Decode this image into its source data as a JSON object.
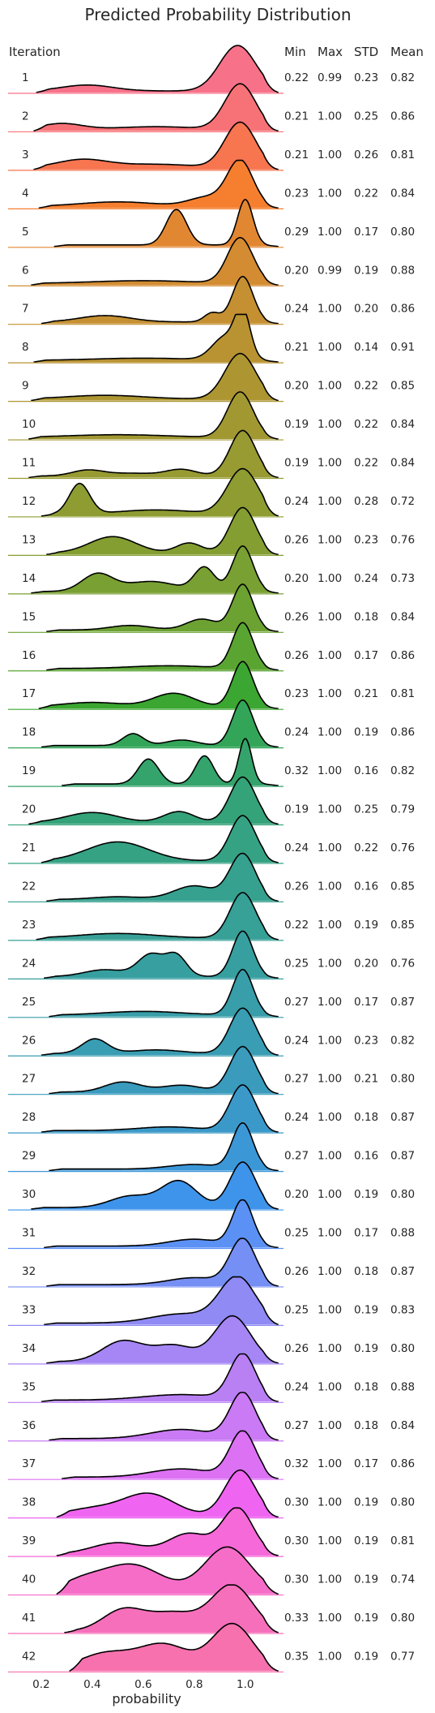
{
  "chart_data": {
    "type": "ridgeline",
    "title": "Predicted Probability Distribution",
    "xlabel": "probability",
    "x_ticks": [
      "0.2",
      "0.4",
      "0.6",
      "0.8",
      "1.0"
    ],
    "x_tick_values": [
      0.2,
      0.4,
      0.6,
      0.8,
      1.0
    ],
    "xlim": [
      0.07,
      1.15
    ],
    "grid": false,
    "row_header": "Iteration",
    "stat_columns": [
      "Min",
      "Max",
      "STD",
      "Mean"
    ],
    "series": [
      {
        "label": "1",
        "color": "#f77189",
        "stats": [
          "0.22",
          "0.99",
          "0.23",
          "0.82"
        ],
        "peaks": [
          [
            0.97,
            0.07,
            1.0
          ],
          [
            0.38,
            0.1,
            0.13
          ]
        ]
      },
      {
        "label": "2",
        "color": "#f77277",
        "stats": [
          "0.21",
          "1.00",
          "0.25",
          "0.86"
        ],
        "peaks": [
          [
            0.98,
            0.06,
            1.0
          ],
          [
            0.28,
            0.08,
            0.13
          ],
          [
            0.65,
            0.15,
            0.06
          ]
        ]
      },
      {
        "label": "3",
        "color": "#f7754f",
        "stats": [
          "0.21",
          "1.00",
          "0.26",
          "0.81"
        ],
        "peaks": [
          [
            0.98,
            0.06,
            1.0
          ],
          [
            0.36,
            0.1,
            0.18
          ],
          [
            0.65,
            0.15,
            0.08
          ]
        ]
      },
      {
        "label": "4",
        "color": "#f57f2f",
        "stats": [
          "0.23",
          "1.00",
          "0.22",
          "0.84"
        ],
        "peaks": [
          [
            0.98,
            0.05,
            1.0
          ],
          [
            0.85,
            0.07,
            0.2
          ],
          [
            0.5,
            0.15,
            0.1
          ]
        ]
      },
      {
        "label": "5",
        "color": "#e28731",
        "stats": [
          "0.29",
          "1.00",
          "0.17",
          "0.80"
        ],
        "peaks": [
          [
            1.0,
            0.03,
            1.0
          ],
          [
            0.73,
            0.04,
            0.78
          ]
        ]
      },
      {
        "label": "6",
        "color": "#d38c32",
        "stats": [
          "0.20",
          "0.99",
          "0.19",
          "0.88"
        ],
        "peaks": [
          [
            0.98,
            0.05,
            1.0
          ],
          [
            0.6,
            0.2,
            0.06
          ]
        ]
      },
      {
        "label": "7",
        "color": "#c59032",
        "stats": [
          "0.24",
          "1.00",
          "0.20",
          "0.86"
        ],
        "peaks": [
          [
            0.99,
            0.04,
            1.0
          ],
          [
            0.87,
            0.03,
            0.2
          ],
          [
            0.45,
            0.1,
            0.14
          ]
        ]
      },
      {
        "label": "8",
        "color": "#b99332",
        "stats": [
          "0.21",
          "1.00",
          "0.14",
          "0.91"
        ],
        "peaks": [
          [
            0.99,
            0.03,
            1.0
          ],
          [
            0.92,
            0.05,
            0.5
          ],
          [
            0.6,
            0.2,
            0.05
          ]
        ]
      },
      {
        "label": "9",
        "color": "#ad9632",
        "stats": [
          "0.20",
          "1.00",
          "0.22",
          "0.85"
        ],
        "peaks": [
          [
            0.98,
            0.06,
            1.0
          ],
          [
            0.45,
            0.15,
            0.08
          ]
        ]
      },
      {
        "label": "10",
        "color": "#a29832",
        "stats": [
          "0.19",
          "1.00",
          "0.22",
          "0.84"
        ],
        "peaks": [
          [
            0.98,
            0.05,
            1.0
          ],
          [
            0.5,
            0.2,
            0.06
          ]
        ]
      },
      {
        "label": "11",
        "color": "#989a32",
        "stats": [
          "0.19",
          "1.00",
          "0.22",
          "0.84"
        ],
        "peaks": [
          [
            0.99,
            0.05,
            1.0
          ],
          [
            0.38,
            0.06,
            0.12
          ],
          [
            0.75,
            0.06,
            0.14
          ],
          [
            0.55,
            0.1,
            0.06
          ]
        ]
      },
      {
        "label": "12",
        "color": "#8e9c32",
        "stats": [
          "0.24",
          "1.00",
          "0.28",
          "0.72"
        ],
        "peaks": [
          [
            0.99,
            0.06,
            1.0
          ],
          [
            0.35,
            0.04,
            0.67
          ],
          [
            0.65,
            0.15,
            0.1
          ]
        ]
      },
      {
        "label": "13",
        "color": "#849e32",
        "stats": [
          "0.26",
          "1.00",
          "0.23",
          "0.76"
        ],
        "peaks": [
          [
            0.99,
            0.05,
            1.0
          ],
          [
            0.48,
            0.09,
            0.36
          ],
          [
            0.78,
            0.05,
            0.22
          ]
        ]
      },
      {
        "label": "14",
        "color": "#79a032",
        "stats": [
          "0.20",
          "1.00",
          "0.24",
          "0.73"
        ],
        "peaks": [
          [
            0.99,
            0.04,
            1.0
          ],
          [
            0.42,
            0.06,
            0.38
          ],
          [
            0.84,
            0.04,
            0.52
          ],
          [
            0.63,
            0.1,
            0.22
          ]
        ]
      },
      {
        "label": "15",
        "color": "#6ca232",
        "stats": [
          "0.26",
          "1.00",
          "0.18",
          "0.84"
        ],
        "peaks": [
          [
            0.99,
            0.04,
            1.0
          ],
          [
            0.83,
            0.06,
            0.24
          ],
          [
            0.55,
            0.08,
            0.1
          ]
        ]
      },
      {
        "label": "16",
        "color": "#5aa532",
        "stats": [
          "0.26",
          "1.00",
          "0.17",
          "0.86"
        ],
        "peaks": [
          [
            0.99,
            0.04,
            1.0
          ],
          [
            0.7,
            0.15,
            0.06
          ]
        ]
      },
      {
        "label": "17",
        "color": "#3ba631",
        "stats": [
          "0.23",
          "1.00",
          "0.21",
          "0.81"
        ],
        "peaks": [
          [
            0.99,
            0.04,
            1.0
          ],
          [
            0.72,
            0.08,
            0.3
          ],
          [
            0.4,
            0.12,
            0.1
          ]
        ]
      },
      {
        "label": "18",
        "color": "#33a559",
        "stats": [
          "0.24",
          "1.00",
          "0.19",
          "0.86"
        ],
        "peaks": [
          [
            0.99,
            0.04,
            1.0
          ],
          [
            0.56,
            0.04,
            0.26
          ],
          [
            0.75,
            0.06,
            0.12
          ]
        ]
      },
      {
        "label": "19",
        "color": "#34a46c",
        "stats": [
          "0.32",
          "1.00",
          "0.16",
          "0.82"
        ],
        "peaks": [
          [
            1.0,
            0.025,
            1.0
          ],
          [
            0.62,
            0.04,
            0.55
          ],
          [
            0.84,
            0.035,
            0.62
          ]
        ]
      },
      {
        "label": "20",
        "color": "#35a379",
        "stats": [
          "0.19",
          "1.00",
          "0.25",
          "0.79"
        ],
        "peaks": [
          [
            0.99,
            0.05,
            1.0
          ],
          [
            0.4,
            0.1,
            0.22
          ],
          [
            0.74,
            0.06,
            0.24
          ]
        ]
      },
      {
        "label": "21",
        "color": "#36a284",
        "stats": [
          "0.24",
          "1.00",
          "0.22",
          "0.76"
        ],
        "peaks": [
          [
            0.99,
            0.05,
            1.0
          ],
          [
            0.5,
            0.12,
            0.42
          ]
        ]
      },
      {
        "label": "22",
        "color": "#36a18e",
        "stats": [
          "0.26",
          "1.00",
          "0.16",
          "0.85"
        ],
        "peaks": [
          [
            0.99,
            0.05,
            1.0
          ],
          [
            0.8,
            0.08,
            0.3
          ],
          [
            0.5,
            0.1,
            0.06
          ]
        ]
      },
      {
        "label": "23",
        "color": "#37a097",
        "stats": [
          "0.22",
          "1.00",
          "0.19",
          "0.85"
        ],
        "peaks": [
          [
            0.99,
            0.05,
            1.0
          ],
          [
            0.5,
            0.15,
            0.1
          ]
        ]
      },
      {
        "label": "24",
        "color": "#379fa0",
        "stats": [
          "0.25",
          "1.00",
          "0.20",
          "0.76"
        ],
        "peaks": [
          [
            0.99,
            0.04,
            1.0
          ],
          [
            0.63,
            0.05,
            0.48
          ],
          [
            0.73,
            0.04,
            0.45
          ],
          [
            0.45,
            0.08,
            0.15
          ]
        ]
      },
      {
        "label": "25",
        "color": "#389ea9",
        "stats": [
          "0.27",
          "1.00",
          "0.17",
          "0.87"
        ],
        "peaks": [
          [
            0.99,
            0.04,
            1.0
          ],
          [
            0.6,
            0.15,
            0.08
          ]
        ]
      },
      {
        "label": "26",
        "color": "#399db3",
        "stats": [
          "0.24",
          "1.00",
          "0.23",
          "0.82"
        ],
        "peaks": [
          [
            0.99,
            0.05,
            1.0
          ],
          [
            0.41,
            0.05,
            0.32
          ],
          [
            0.65,
            0.1,
            0.08
          ]
        ]
      },
      {
        "label": "27",
        "color": "#3a9bbd",
        "stats": [
          "0.27",
          "1.00",
          "0.21",
          "0.80"
        ],
        "peaks": [
          [
            0.99,
            0.05,
            1.0
          ],
          [
            0.52,
            0.07,
            0.22
          ],
          [
            0.75,
            0.08,
            0.15
          ]
        ]
      },
      {
        "label": "28",
        "color": "#3b99c9",
        "stats": [
          "0.24",
          "1.00",
          "0.18",
          "0.87"
        ],
        "peaks": [
          [
            0.99,
            0.05,
            1.0
          ],
          [
            0.7,
            0.12,
            0.08
          ]
        ]
      },
      {
        "label": "29",
        "color": "#3c97d7",
        "stats": [
          "0.27",
          "1.00",
          "0.16",
          "0.87"
        ],
        "peaks": [
          [
            0.99,
            0.04,
            1.0
          ],
          [
            0.8,
            0.1,
            0.1
          ]
        ]
      },
      {
        "label": "30",
        "color": "#3e94ea",
        "stats": [
          "0.20",
          "1.00",
          "0.19",
          "0.80"
        ],
        "peaks": [
          [
            0.99,
            0.05,
            1.0
          ],
          [
            0.74,
            0.07,
            0.58
          ],
          [
            0.55,
            0.08,
            0.25
          ]
        ]
      },
      {
        "label": "31",
        "color": "#5b91f4",
        "stats": [
          "0.25",
          "1.00",
          "0.17",
          "0.88"
        ],
        "peaks": [
          [
            0.99,
            0.04,
            1.0
          ],
          [
            0.8,
            0.1,
            0.15
          ]
        ]
      },
      {
        "label": "32",
        "color": "#768ff4",
        "stats": [
          "0.26",
          "1.00",
          "0.18",
          "0.87"
        ],
        "peaks": [
          [
            0.99,
            0.05,
            1.0
          ],
          [
            0.8,
            0.1,
            0.15
          ]
        ]
      },
      {
        "label": "33",
        "color": "#8f8af4",
        "stats": [
          "0.25",
          "1.00",
          "0.19",
          "0.83"
        ],
        "peaks": [
          [
            0.97,
            0.07,
            1.0
          ],
          [
            0.75,
            0.12,
            0.2
          ]
        ]
      },
      {
        "label": "34",
        "color": "#a586f4",
        "stats": [
          "0.26",
          "1.00",
          "0.19",
          "0.80"
        ],
        "peaks": [
          [
            0.95,
            0.07,
            1.0
          ],
          [
            0.52,
            0.08,
            0.45
          ],
          [
            0.72,
            0.08,
            0.35
          ]
        ]
      },
      {
        "label": "35",
        "color": "#b980f4",
        "stats": [
          "0.24",
          "1.00",
          "0.18",
          "0.88"
        ],
        "peaks": [
          [
            0.99,
            0.05,
            1.0
          ],
          [
            0.75,
            0.15,
            0.12
          ]
        ]
      },
      {
        "label": "36",
        "color": "#ca7af4",
        "stats": [
          "0.27",
          "1.00",
          "0.18",
          "0.84"
        ],
        "peaks": [
          [
            0.99,
            0.05,
            1.0
          ],
          [
            0.75,
            0.12,
            0.2
          ]
        ]
      },
      {
        "label": "37",
        "color": "#dc71f4",
        "stats": [
          "0.32",
          "1.00",
          "0.17",
          "0.86"
        ],
        "peaks": [
          [
            0.99,
            0.05,
            1.0
          ],
          [
            0.75,
            0.12,
            0.18
          ]
        ]
      },
      {
        "label": "38",
        "color": "#ef65f1",
        "stats": [
          "0.30",
          "1.00",
          "0.19",
          "0.80"
        ],
        "peaks": [
          [
            0.98,
            0.06,
            1.0
          ],
          [
            0.62,
            0.1,
            0.48
          ],
          [
            0.4,
            0.1,
            0.15
          ]
        ]
      },
      {
        "label": "39",
        "color": "#f569d8",
        "stats": [
          "0.30",
          "1.00",
          "0.19",
          "0.81"
        ],
        "peaks": [
          [
            0.97,
            0.06,
            1.0
          ],
          [
            0.78,
            0.08,
            0.45
          ],
          [
            0.5,
            0.1,
            0.25
          ]
        ]
      },
      {
        "label": "40",
        "color": "#f66dc8",
        "stats": [
          "0.30",
          "1.00",
          "0.19",
          "0.74"
        ],
        "peaks": [
          [
            0.93,
            0.09,
            1.0
          ],
          [
            0.55,
            0.12,
            0.62
          ],
          [
            0.35,
            0.08,
            0.2
          ]
        ]
      },
      {
        "label": "41",
        "color": "#f66fbb",
        "stats": [
          "0.33",
          "1.00",
          "0.19",
          "0.80"
        ],
        "peaks": [
          [
            0.95,
            0.08,
            1.0
          ],
          [
            0.52,
            0.08,
            0.45
          ],
          [
            0.72,
            0.1,
            0.4
          ]
        ]
      },
      {
        "label": "42",
        "color": "#f771ae",
        "stats": [
          "0.35",
          "1.00",
          "0.19",
          "0.77"
        ],
        "peaks": [
          [
            0.95,
            0.08,
            1.0
          ],
          [
            0.68,
            0.1,
            0.55
          ],
          [
            0.45,
            0.1,
            0.35
          ]
        ]
      }
    ]
  }
}
